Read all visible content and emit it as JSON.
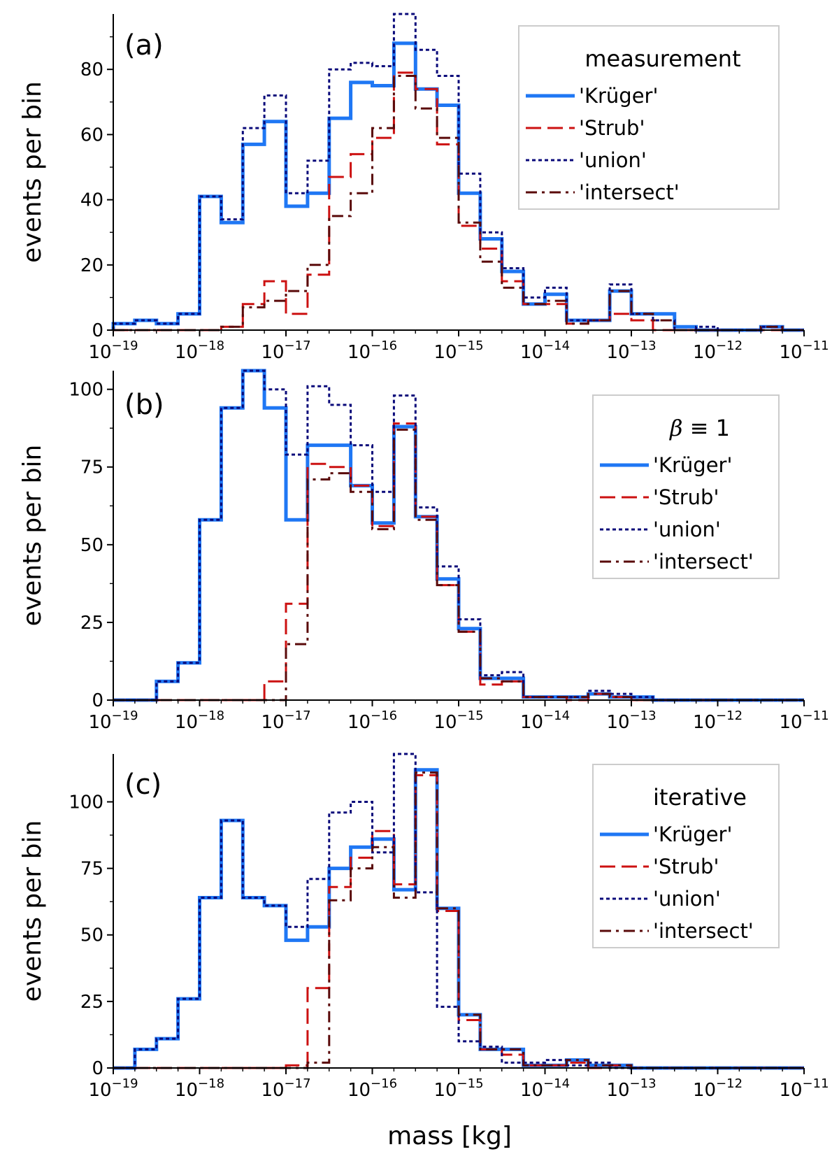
{
  "figure": {
    "xlabel": "mass [kg]",
    "ylabel": "events per bin",
    "x_tick_base": "10",
    "x_tick_exponents": [
      "−19",
      "−18",
      "−17",
      "−16",
      "−15",
      "−14",
      "−13",
      "−12",
      "−11"
    ]
  },
  "series_styles": [
    {
      "name": "'Krüger'",
      "color": "#1f77f4",
      "dash": "solid"
    },
    {
      "name": "'Strub'",
      "color": "#cc1111",
      "dash": "dashed"
    },
    {
      "name": "'union'",
      "color": "#0a0a7a",
      "dash": "dotted"
    },
    {
      "name": "'intersect'",
      "color": "#5a0a0a",
      "dash": "dashdot"
    }
  ],
  "chart_data": [
    {
      "type": "histogram-step",
      "panel_label": "(a)",
      "legend_title": "measurement",
      "legend_title_symbol": "",
      "xlabel": "mass [kg]",
      "ylabel": "events per bin",
      "x_scale": "log",
      "xlim_log10": [
        -19,
        -11
      ],
      "ylim": [
        0,
        97
      ],
      "yticks": [
        0,
        20,
        40,
        60,
        80
      ],
      "yticks_minor": [
        10,
        30,
        50,
        70,
        90
      ],
      "bin_start_log10": -19,
      "bin_width_log10": 0.25,
      "series": [
        {
          "name": "'Krüger'",
          "values": [
            2,
            3,
            2,
            5,
            41,
            33,
            57,
            64,
            38,
            42,
            65,
            76,
            75,
            88,
            74,
            69,
            42,
            28,
            18,
            8,
            11,
            3,
            3,
            12,
            5,
            5,
            1,
            0,
            0,
            0,
            1,
            0
          ]
        },
        {
          "name": "'Strub'",
          "values": [
            0,
            0,
            0,
            0,
            0,
            1,
            8,
            15,
            5,
            17,
            47,
            54,
            59,
            79,
            74,
            57,
            32,
            25,
            15,
            8,
            8,
            2,
            3,
            5,
            3,
            0,
            0,
            0,
            0,
            0,
            0,
            0
          ]
        },
        {
          "name": "'union'",
          "values": [
            2,
            3,
            2,
            5,
            41,
            34,
            62,
            72,
            42,
            52,
            80,
            82,
            81,
            97,
            86,
            78,
            48,
            30,
            19,
            10,
            13,
            3,
            3,
            14,
            5,
            3,
            0,
            1,
            0,
            0,
            1,
            0
          ]
        },
        {
          "name": "'intersect'",
          "values": [
            0,
            0,
            0,
            0,
            0,
            1,
            7,
            9,
            12,
            20,
            35,
            42,
            62,
            78,
            68,
            59,
            33,
            21,
            13,
            8,
            9,
            2,
            3,
            12,
            5,
            3,
            0,
            0,
            0,
            0,
            1,
            0
          ]
        }
      ]
    },
    {
      "type": "histogram-step",
      "panel_label": "(b)",
      "legend_title": "",
      "legend_title_symbol": "β",
      "legend_title_rest": " ≡ 1",
      "xlabel": "mass [kg]",
      "ylabel": "events per bin",
      "x_scale": "log",
      "xlim_log10": [
        -19,
        -11
      ],
      "ylim": [
        0,
        106
      ],
      "yticks": [
        0,
        25,
        50,
        75,
        100
      ],
      "yticks_minor": [
        12.5,
        37.5,
        62.5,
        87.5
      ],
      "bin_start_log10": -19,
      "bin_width_log10": 0.25,
      "series": [
        {
          "name": "'Krüger'",
          "values": [
            0,
            0,
            6,
            12,
            58,
            94,
            106,
            94,
            58,
            82,
            82,
            69,
            57,
            88,
            59,
            39,
            23,
            7,
            7,
            1,
            1,
            1,
            2,
            1,
            1,
            0,
            0,
            0,
            0,
            0,
            0,
            0
          ]
        },
        {
          "name": "'Strub'",
          "values": [
            0,
            0,
            0,
            0,
            0,
            0,
            0,
            6,
            31,
            76,
            75,
            69,
            56,
            89,
            59,
            37,
            22,
            5,
            6,
            1,
            1,
            0,
            2,
            1,
            0,
            0,
            0,
            0,
            0,
            0,
            0,
            0
          ]
        },
        {
          "name": "'union'",
          "values": [
            0,
            0,
            6,
            12,
            58,
            94,
            106,
            100,
            79,
            101,
            95,
            82,
            67,
            98,
            62,
            43,
            26,
            8,
            9,
            1,
            1,
            1,
            3,
            2,
            1,
            0,
            0,
            0,
            0,
            0,
            0,
            0
          ]
        },
        {
          "name": "'intersect'",
          "values": [
            0,
            0,
            0,
            0,
            0,
            0,
            0,
            0,
            18,
            71,
            73,
            67,
            55,
            87,
            58,
            37,
            22,
            7,
            6,
            1,
            1,
            1,
            2,
            1,
            0,
            0,
            0,
            0,
            0,
            0,
            0,
            0
          ]
        }
      ]
    },
    {
      "type": "histogram-step",
      "panel_label": "(c)",
      "legend_title": "iterative",
      "legend_title_symbol": "",
      "xlabel": "mass [kg]",
      "ylabel": "events per bin",
      "x_scale": "log",
      "xlim_log10": [
        -19,
        -11
      ],
      "ylim": [
        0,
        118
      ],
      "yticks": [
        0,
        25,
        50,
        75,
        100
      ],
      "yticks_minor": [
        12.5,
        37.5,
        62.5,
        87.5
      ],
      "bin_start_log10": -19,
      "bin_width_log10": 0.25,
      "series": [
        {
          "name": "'Krüger'",
          "values": [
            0,
            7,
            11,
            26,
            64,
            93,
            64,
            61,
            48,
            53,
            75,
            83,
            86,
            67,
            112,
            60,
            20,
            7,
            7,
            1,
            1,
            3,
            1,
            1,
            0,
            0,
            0,
            0,
            0,
            0,
            0,
            0
          ]
        },
        {
          "name": "'Strub'",
          "values": [
            0,
            0,
            0,
            0,
            0,
            0,
            0,
            0,
            1,
            30,
            68,
            79,
            89,
            69,
            110,
            59,
            18,
            7,
            5,
            1,
            1,
            2,
            0,
            1,
            0,
            0,
            0,
            0,
            0,
            0,
            0,
            0
          ]
        },
        {
          "name": "'union'",
          "values": [
            0,
            7,
            11,
            26,
            64,
            93,
            64,
            61,
            53,
            71,
            96,
            100,
            81,
            118,
            66,
            23,
            10,
            8,
            2,
            2,
            3,
            1,
            2,
            0,
            0,
            0,
            0,
            0,
            0,
            0,
            0,
            0
          ]
        },
        {
          "name": "'intersect'",
          "values": [
            0,
            0,
            0,
            0,
            0,
            0,
            0,
            0,
            0,
            2,
            63,
            75,
            83,
            64,
            111,
            60,
            20,
            7,
            7,
            1,
            1,
            3,
            1,
            1,
            0,
            0,
            0,
            0,
            0,
            0,
            0,
            0
          ]
        }
      ]
    }
  ]
}
